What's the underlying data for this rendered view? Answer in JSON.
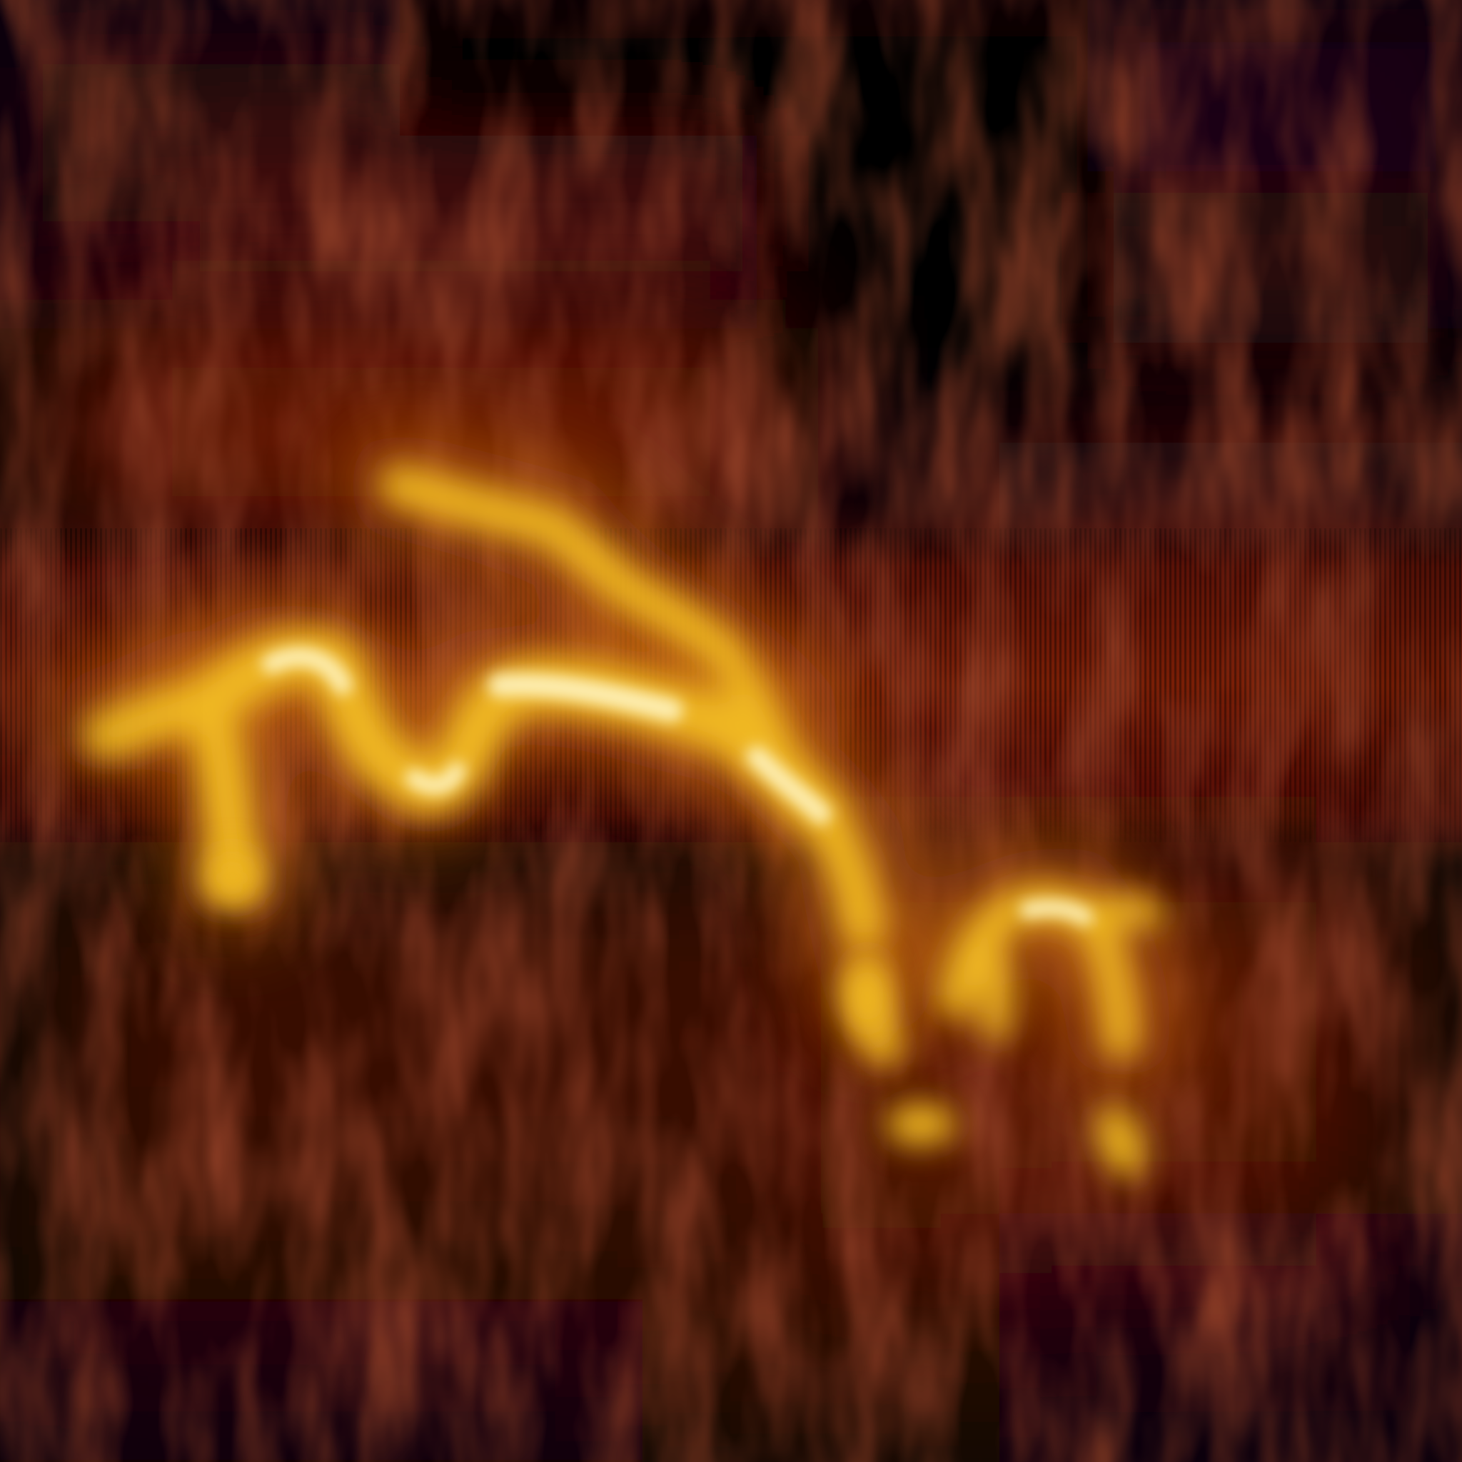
{
  "image": {
    "kind": "false-color intensity map",
    "colormap": "afmhot",
    "colors": {
      "background_dark": "#060006",
      "deep_purple": "#1c0612",
      "dark_maroon": "#3a0a08",
      "band_maroon": "#5e1206",
      "rust": "#7a1e06",
      "orange": "#c86a0a",
      "gold": "#f0b820",
      "highlight": "#fff4c0"
    },
    "regions": [
      {
        "name": "upper-dark-field",
        "description_key": "dark"
      },
      {
        "name": "streaked-band",
        "description_key": "textured"
      },
      {
        "name": "bright-trail",
        "description_key": "bright"
      },
      {
        "name": "lower-field",
        "description_key": "dim"
      }
    ]
  }
}
